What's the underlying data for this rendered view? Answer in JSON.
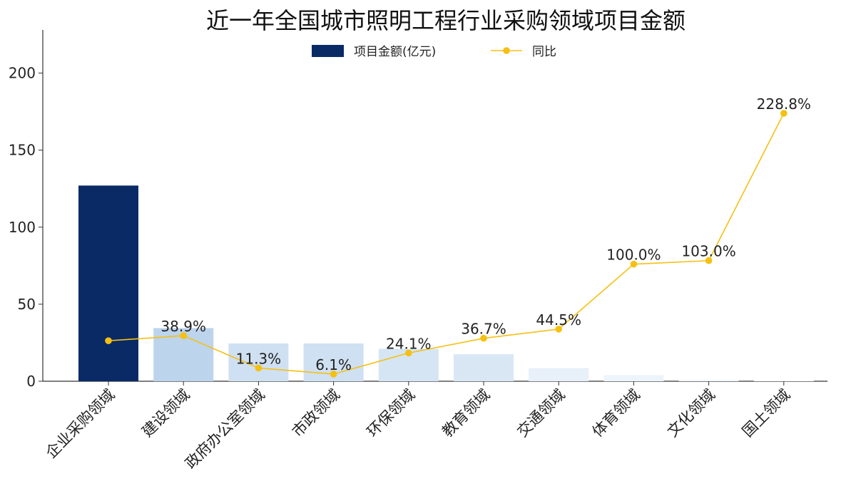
{
  "chart_data": {
    "type": "bar",
    "title": "近一年全国城市照明工程行业采购领域项目金额",
    "categories": [
      "企业采购领域",
      "建设领域",
      "政府办公室领域",
      "市政领域",
      "环保领域",
      "教育领域",
      "交通领域",
      "体育领域",
      "文化领域",
      "国土领域"
    ],
    "series": [
      {
        "name": "项目金额(亿元)",
        "type": "bar",
        "values": [
          127,
          34.5,
          24.5,
          24.5,
          21,
          17.5,
          8.5,
          4,
          1,
          0.5
        ],
        "colors": [
          "#0a2a66",
          "#bcd4ec",
          "#cfe0f2",
          "#cfe0f2",
          "#d6e5f4",
          "#d9e7f5",
          "#e8f0f9",
          "#eef4fb",
          "#f3f7fc",
          "#f6f9fd"
        ],
        "color": "#0a2a66"
      },
      {
        "name": "同比",
        "type": "line",
        "values": [
          34.6,
          38.9,
          11.3,
          6.1,
          24.1,
          36.7,
          44.5,
          100.0,
          103.0,
          228.8
        ],
        "labels": [
          "",
          "38.9%",
          "11.3%",
          "6.1%",
          "24.1%",
          "36.7%",
          "44.5%",
          "100.0%",
          "103.0%",
          "228.8%"
        ],
        "color": "#f5c012"
      }
    ],
    "y_axis": {
      "min": 0,
      "max": 228,
      "ticks": [
        0,
        50,
        100,
        150,
        200
      ]
    },
    "y2_axis": {
      "min": 0,
      "max": 300,
      "hidden": true
    },
    "legend": {
      "position": "top-center"
    },
    "grid": false
  }
}
